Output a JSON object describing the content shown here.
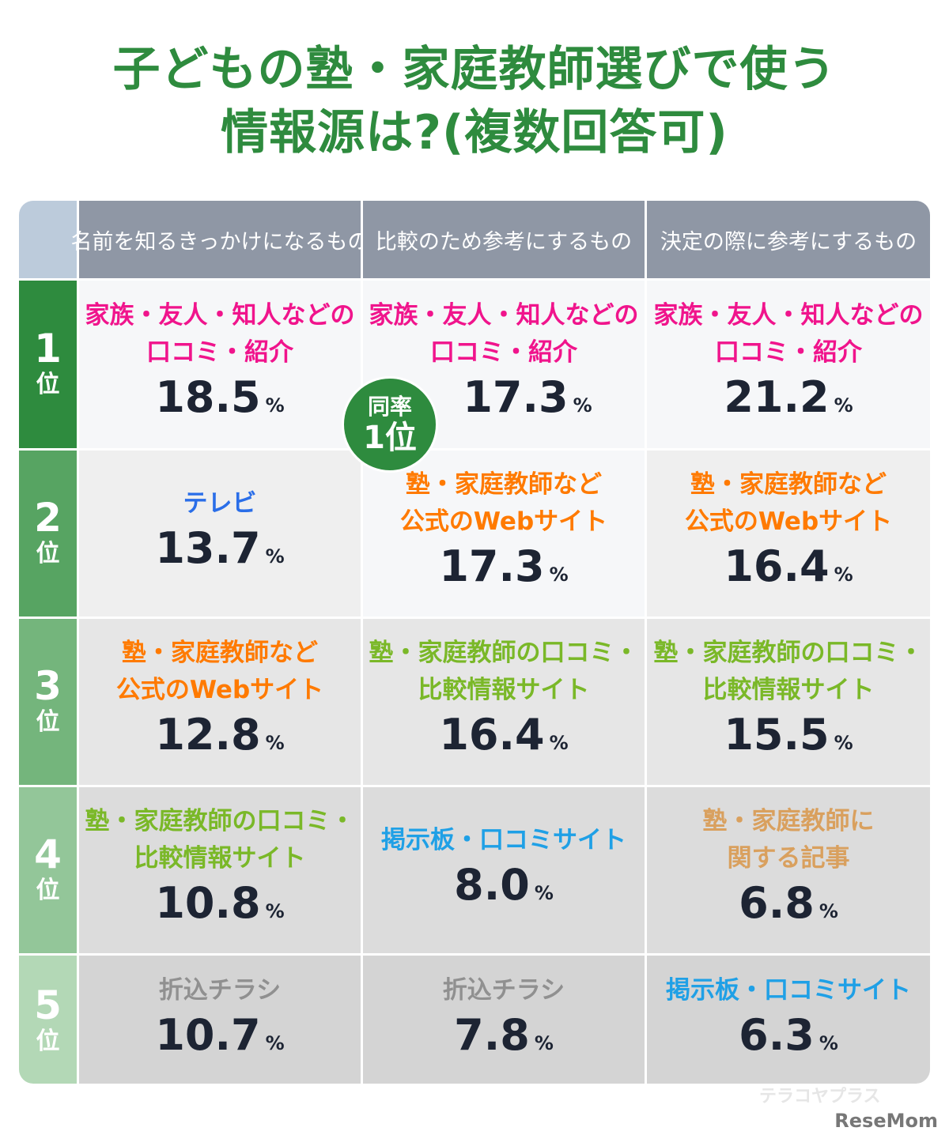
{
  "title": [
    "子どもの塾・家庭教師選びで使う",
    "情報源は?(複数回答可)"
  ],
  "columns": [
    "名前を知るきっかけになるもの",
    "比較のため参考にするもの",
    "決定の際に参考にするもの"
  ],
  "unit": "%",
  "rank_suffix": "位",
  "tie_badge": {
    "line1": "同率",
    "line2": "1位"
  },
  "colors": {
    "title": "#2e8b3e",
    "header": "#8f97a5",
    "rank_column": [
      "#2e8b3e",
      "#57a462",
      "#74b57c",
      "#93c699",
      "#b3d8b6"
    ]
  },
  "rows": [
    {
      "rank": "1",
      "bg": "#f6f7f9",
      "cells": [
        {
          "label": "家族・友人・知人などの\n口コミ・紹介",
          "value": "18.5",
          "color": "#f0148c"
        },
        {
          "label": "家族・友人・知人などの\n口コミ・紹介",
          "value": "17.3",
          "color": "#f0148c"
        },
        {
          "label": "家族・友人・知人などの\n口コミ・紹介",
          "value": "21.2",
          "color": "#f0148c"
        }
      ]
    },
    {
      "rank": "2",
      "bg": "#efefef",
      "cells": [
        {
          "label": "テレビ",
          "value": "13.7",
          "color": "#2a6ee8"
        },
        {
          "label": "塾・家庭教師など\n公式のWebサイト",
          "value": "17.3",
          "color": "#ff7a00"
        },
        {
          "label": "塾・家庭教師など\n公式のWebサイト",
          "value": "16.4",
          "color": "#ff7a00"
        }
      ]
    },
    {
      "rank": "3",
      "bg": "#e6e6e6",
      "cells": [
        {
          "label": "塾・家庭教師など\n公式のWebサイト",
          "value": "12.8",
          "color": "#ff7a00"
        },
        {
          "label": "塾・家庭教師の口コミ・\n比較情報サイト",
          "value": "16.4",
          "color": "#7ab828"
        },
        {
          "label": "塾・家庭教師の口コミ・\n比較情報サイト",
          "value": "15.5",
          "color": "#7ab828"
        }
      ]
    },
    {
      "rank": "4",
      "bg": "#dcdcdc",
      "cells": [
        {
          "label": "塾・家庭教師の口コミ・\n比較情報サイト",
          "value": "10.8",
          "color": "#7ab828"
        },
        {
          "label": "掲示板・口コミサイト",
          "value": "8.0",
          "color": "#1fa0e6"
        },
        {
          "label": "塾・家庭教師に\n関する記事",
          "value": "6.8",
          "color": "#d9a05e"
        }
      ]
    },
    {
      "rank": "5",
      "bg": "#d4d4d4",
      "cells": [
        {
          "label": "折込チラシ",
          "value": "10.7",
          "color": "#909090"
        },
        {
          "label": "折込チラシ",
          "value": "7.8",
          "color": "#909090"
        },
        {
          "label": "掲示板・口コミサイト",
          "value": "6.3",
          "color": "#1fa0e6"
        }
      ]
    }
  ],
  "footer": {
    "watermark": "テラコヤプラス",
    "logo": "ReseMom"
  }
}
